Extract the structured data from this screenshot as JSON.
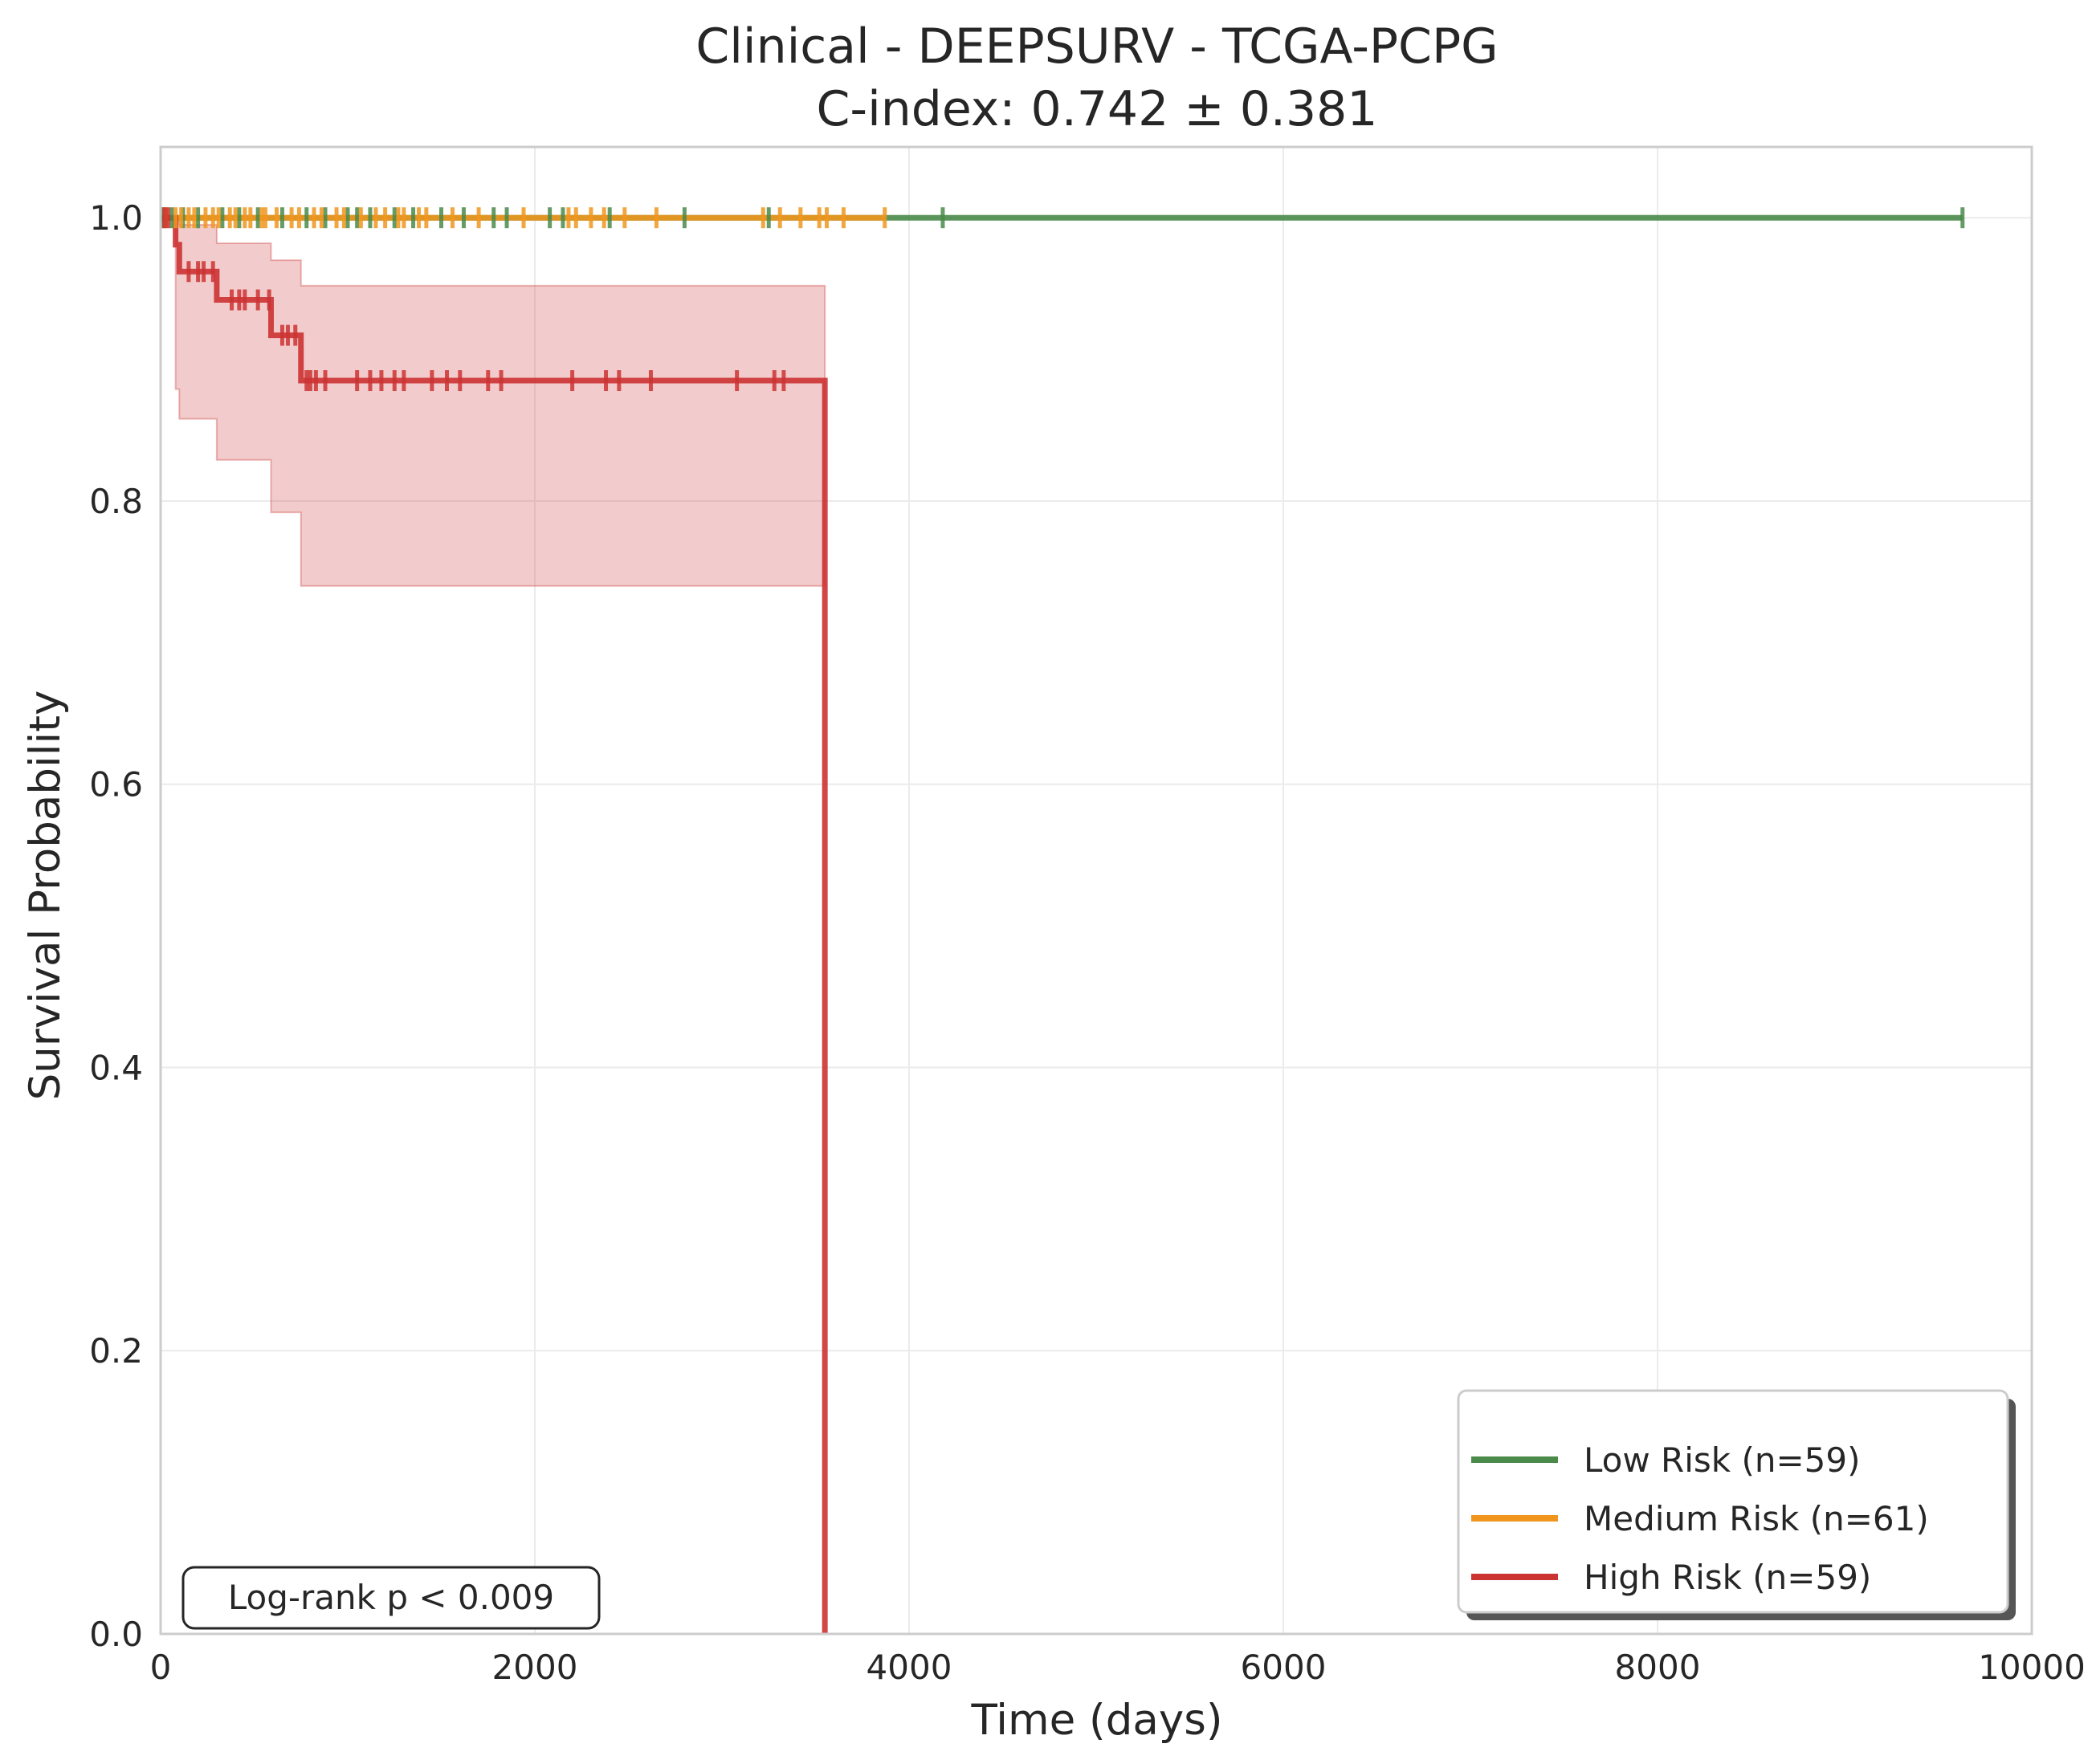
{
  "chart_data": {
    "type": "line",
    "subtype": "kaplan-meier",
    "title": "Clinical - DEEPSURV - TCGA-PCPG",
    "subtitle": "C-index: 0.742 ± 0.381",
    "xlabel": "Time (days)",
    "ylabel": "Survival Probability",
    "xlim": [
      0,
      10000
    ],
    "ylim": [
      0,
      1.05
    ],
    "xticks": [
      0,
      2000,
      4000,
      6000,
      8000,
      10000
    ],
    "xtick_labels": [
      "0",
      "2000",
      "4000",
      "6000",
      "8000",
      "10000"
    ],
    "yticks": [
      0.0,
      0.2,
      0.4,
      0.6,
      0.8,
      1.0
    ],
    "ytick_labels": [
      "0.0",
      "0.2",
      "0.4",
      "0.6",
      "0.8",
      "1.0"
    ],
    "grid": true,
    "legend_position": "bottom-right",
    "annotation": "Log-rank p < 0.009",
    "series": [
      {
        "name": "Low Risk (n=59)",
        "color": "#4a8a4a",
        "steps": [
          [
            0,
            1.0
          ],
          [
            9630,
            1.0
          ]
        ],
        "censored": [
          15,
          60,
          120,
          200,
          330,
          420,
          520,
          650,
          780,
          880,
          1000,
          1050,
          1120,
          1250,
          1350,
          1500,
          1620,
          1780,
          1850,
          2080,
          2150,
          2400,
          2800,
          3250,
          4180,
          9630
        ],
        "ci": null
      },
      {
        "name": "Medium Risk (n=61)",
        "color": "#f0961e",
        "steps": [
          [
            0,
            1.0
          ],
          [
            3870,
            1.0
          ]
        ],
        "censored": [
          30,
          80,
          110,
          150,
          180,
          240,
          280,
          310,
          370,
          400,
          450,
          480,
          540,
          560,
          620,
          700,
          740,
          820,
          860,
          940,
          980,
          1070,
          1150,
          1200,
          1270,
          1300,
          1380,
          1420,
          1560,
          1700,
          1940,
          2180,
          2220,
          2300,
          2370,
          2480,
          2650,
          3220,
          3310,
          3420,
          3520,
          3560,
          3650,
          3870
        ],
        "ci": null
      },
      {
        "name": "High Risk (n=59)",
        "color": "#cc3333",
        "steps": [
          [
            0,
            1.0
          ],
          [
            80,
            0.981
          ],
          [
            100,
            0.962
          ],
          [
            300,
            0.942
          ],
          [
            590,
            0.917
          ],
          [
            750,
            0.885
          ],
          [
            3550,
            0.885
          ],
          [
            3550,
            0.0
          ]
        ],
        "censored": [
          20,
          40,
          150,
          200,
          230,
          280,
          380,
          420,
          450,
          520,
          580,
          650,
          680,
          720,
          780,
          800,
          830,
          880,
          1050,
          1120,
          1180,
          1250,
          1300,
          1450,
          1530,
          1600,
          1750,
          1820,
          2200,
          2380,
          2450,
          2620,
          3080,
          3280,
          3330
        ],
        "ci": {
          "lower": [
            [
              0,
              1.0
            ],
            [
              80,
              0.879
            ],
            [
              100,
              0.858
            ],
            [
              300,
              0.829
            ],
            [
              590,
              0.792
            ],
            [
              750,
              0.74
            ],
            [
              3550,
              0.74
            ]
          ],
          "upper": [
            [
              0,
              1.0
            ],
            [
              100,
              0.995
            ],
            [
              300,
              0.982
            ],
            [
              590,
              0.97
            ],
            [
              750,
              0.952
            ],
            [
              3550,
              0.952
            ]
          ]
        }
      }
    ]
  }
}
